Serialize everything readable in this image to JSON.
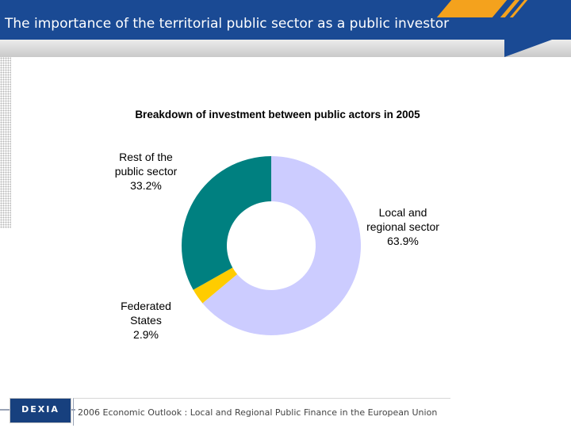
{
  "header": {
    "title": "The importance of the territorial public sector as a public investor",
    "colors": {
      "bar": "#1a4a94",
      "stripe": "#f4a21d"
    }
  },
  "footer": {
    "logo_text": "DEXIA",
    "caption": "2006 Economic Outlook : Local and Regional Public Finance in the European Union"
  },
  "chart_data": {
    "type": "pie",
    "title": "Breakdown of investment between public actors in 2005",
    "donut": true,
    "slices": [
      {
        "label_lines": [
          "Local and",
          "regional sector",
          "63.9%"
        ],
        "value": 63.9,
        "color": "#ccccff"
      },
      {
        "label_lines": [
          "Federated",
          "States",
          "2.9%"
        ],
        "value": 2.9,
        "color": "#ffcc00"
      },
      {
        "label_lines": [
          "Rest of the",
          "public sector",
          "33.2%"
        ],
        "value": 33.2,
        "color": "#008080"
      }
    ]
  }
}
